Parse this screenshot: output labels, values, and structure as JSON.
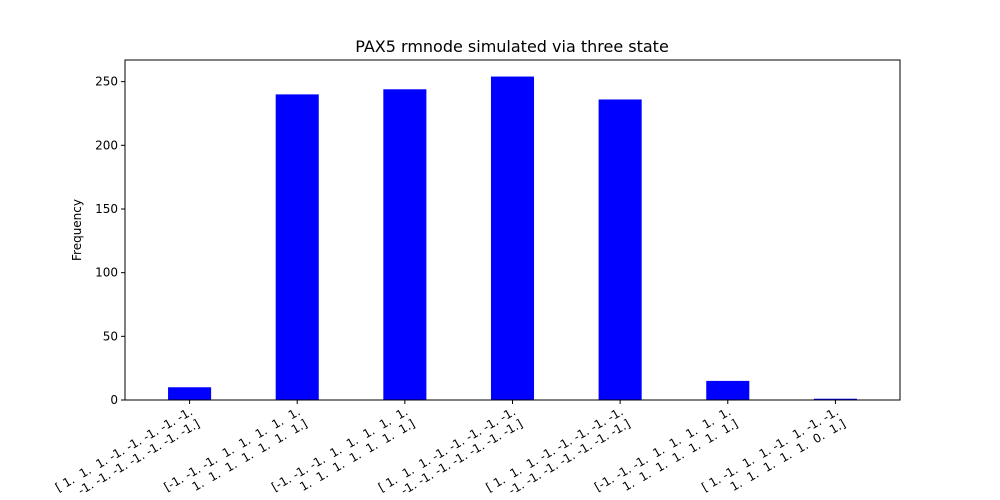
{
  "chart_data": {
    "type": "bar",
    "title": "PAX5 rmnode simulated via three state",
    "xlabel": "",
    "ylabel": "Frequency",
    "ylim": [
      0,
      267
    ],
    "yticks": [
      0,
      50,
      100,
      150,
      200,
      250
    ],
    "grid": false,
    "bar_color": "#0000ff",
    "categories": [
      [
        "[ 1.  1.  1. -1. -1. -1. -1. -1.",
        " -1. -1. -1. -1. -1. -1. -1.]"
      ],
      [
        "[-1. -1. -1.  1.  1.  1.  1.  1.",
        "  1.  1.  1.  1.  1.  1.  1.]"
      ],
      [
        "[-1. -1. -1.  1.  1.  1.  1.  1.",
        "  1.  1.  1.  1.  1.  1.  1.]"
      ],
      [
        "[ 1.  1.  1. -1. -1. -1. -1. -1.",
        " -1. -1. -1. -1. -1. -1. -1.]"
      ],
      [
        "[ 1.  1.  1. -1. -1. -1. -1. -1.",
        " -1. -1. -1. -1. -1. -1. -1.]"
      ],
      [
        "[-1. -1. -1.  1.  1.  1.  1.  1.",
        "  1.  1.  1.  1.  1.  1.  1.]"
      ],
      [
        "[ 1. -1.  1.  1. -1.  1. -1. -1.",
        "  1.  1.  1.  1.  1.  0.  1.]"
      ]
    ],
    "values": [
      10,
      240,
      244,
      254,
      236,
      15,
      1
    ]
  }
}
